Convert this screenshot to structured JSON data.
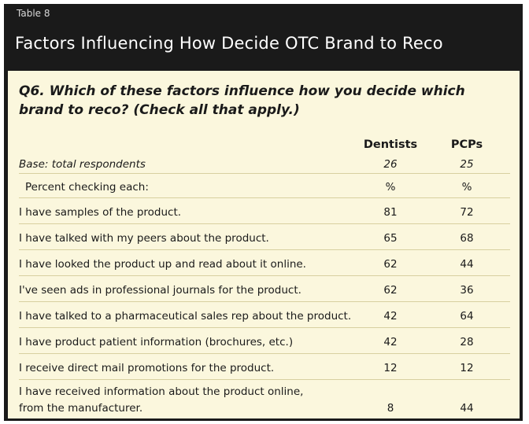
{
  "table_label": "Table 8",
  "title": "Factors Influencing How Decide OTC Brand to Reco",
  "question": "Q6. Which of these factors influence how you decide which brand to reco? (Check all that apply.)",
  "columns": [
    "Dentists",
    "PCPs"
  ],
  "base": {
    "label": "Base: total respondents",
    "dentists": "26",
    "pcps": "25"
  },
  "percent_row": {
    "label": "Percent checking each:",
    "dentists": "%",
    "pcps": "%"
  },
  "rows": [
    {
      "label": "I have samples of the product.",
      "dentists": "81",
      "pcps": "72"
    },
    {
      "label": "I have talked with my peers about the product.",
      "dentists": "65",
      "pcps": "68"
    },
    {
      "label": "I have looked the product up and read about it online.",
      "dentists": "62",
      "pcps": "44"
    },
    {
      "label": "I've seen ads in professional journals for the product.",
      "dentists": "62",
      "pcps": "36"
    },
    {
      "label": "I have talked to a pharmaceutical sales rep about the product.",
      "dentists": "42",
      "pcps": "64"
    },
    {
      "label": "I have product patient information (brochures, etc.)",
      "dentists": "42",
      "pcps": "28"
    },
    {
      "label": "I receive direct mail promotions for the product.",
      "dentists": "12",
      "pcps": "12"
    },
    {
      "label_line1": "I have received information about the product online,",
      "label_line2": "from the manufacturer.",
      "dentists": "8",
      "pcps": "44"
    }
  ]
}
